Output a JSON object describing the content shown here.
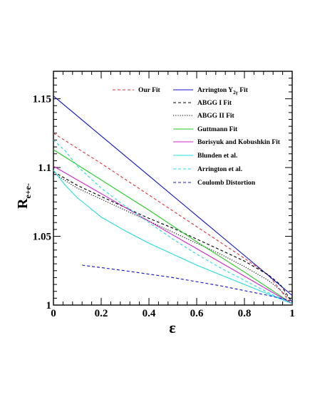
{
  "chart_data": {
    "type": "line",
    "xlabel": "ε",
    "ylabel_main": "R",
    "ylabel_sub": "e+e-",
    "xlim": [
      0,
      1
    ],
    "ylim": [
      1.0,
      1.17
    ],
    "x_ticks": [
      0,
      0.2,
      0.4,
      0.6,
      0.8,
      1
    ],
    "x_tick_labels": [
      "0",
      "0.2",
      "0.4",
      "0.6",
      "0.8",
      "1"
    ],
    "y_ticks": [
      1,
      1.05,
      1.1,
      1.15
    ],
    "y_tick_labels": [
      "1",
      "1.05",
      "1.1",
      "1.15"
    ],
    "grid": false,
    "legend_placement": "top-right",
    "series": [
      {
        "name": "Our Fit",
        "color": "#e03030",
        "dash": "dashed",
        "x": [
          0,
          0.2,
          0.4,
          0.6,
          0.8,
          0.9,
          1
        ],
        "y": [
          1.125,
          1.103,
          1.08,
          1.057,
          1.034,
          1.022,
          1.0
        ]
      },
      {
        "name": "Arrington Y",
        "name_sub": "2γ",
        "name_suffix": " Fit",
        "color": "#1010d0",
        "dash": "solid",
        "x": [
          0,
          0.2,
          0.4,
          0.6,
          0.8,
          1
        ],
        "y": [
          1.152,
          1.123,
          1.094,
          1.065,
          1.036,
          1.007
        ]
      },
      {
        "name": "ABGG I Fit",
        "color": "#000000",
        "dash": "dashed",
        "x": [
          0,
          0.1,
          0.2,
          0.3,
          0.4,
          0.5,
          0.6,
          0.7,
          0.8,
          0.9,
          0.95,
          1
        ],
        "y": [
          1.097,
          1.087,
          1.079,
          1.071,
          1.063,
          1.056,
          1.048,
          1.04,
          1.032,
          1.022,
          1.015,
          1.002
        ]
      },
      {
        "name": "ABGG II Fit",
        "color": "#000000",
        "dash": "dotted",
        "x": [
          0,
          0.1,
          0.2,
          0.3,
          0.4,
          0.5,
          0.6,
          0.7,
          0.8,
          0.9,
          0.95,
          1
        ],
        "y": [
          1.096,
          1.085,
          1.077,
          1.069,
          1.061,
          1.053,
          1.045,
          1.037,
          1.028,
          1.018,
          1.011,
          1.003
        ]
      },
      {
        "name": "Guttmann Fit",
        "color": "#22cc22",
        "dash": "solid",
        "x": [
          0,
          0.2,
          0.4,
          0.6,
          0.8,
          1
        ],
        "y": [
          1.113,
          1.091,
          1.069,
          1.046,
          1.024,
          1.001
        ]
      },
      {
        "name": "Borisyuk and Kobushkin Fit",
        "color": "#cc22cc",
        "dash": "solid",
        "x": [
          0,
          0.2,
          0.4,
          0.6,
          0.8,
          1
        ],
        "y": [
          1.101,
          1.081,
          1.061,
          1.041,
          1.021,
          1.001
        ]
      },
      {
        "name": "Blunden et al.",
        "color": "#22dddd",
        "dash": "solid",
        "x": [
          0,
          0.05,
          0.1,
          0.15,
          0.2,
          0.3,
          0.4,
          0.5,
          0.6,
          0.7,
          0.8,
          0.9,
          1
        ],
        "y": [
          1.098,
          1.087,
          1.078,
          1.071,
          1.064,
          1.054,
          1.045,
          1.037,
          1.029,
          1.022,
          1.015,
          1.008,
          1.001
        ]
      },
      {
        "name": "Arrington et al.",
        "color": "#22dddd",
        "dash": "dashed",
        "x": [
          0,
          0.05,
          0.1,
          0.2,
          0.3,
          0.4,
          0.5,
          0.6,
          0.7,
          0.8,
          0.9,
          1
        ],
        "y": [
          1.12,
          1.112,
          1.101,
          1.085,
          1.072,
          1.06,
          1.048,
          1.037,
          1.027,
          1.018,
          1.009,
          1.001
        ]
      },
      {
        "name": "Coulomb Distortion",
        "color": "#1010d0",
        "dash": "dashed",
        "x": [
          0.12,
          0.3,
          0.5,
          0.7,
          0.9,
          1
        ],
        "y": [
          1.029,
          1.025,
          1.02,
          1.014,
          1.007,
          1.003
        ]
      }
    ]
  }
}
